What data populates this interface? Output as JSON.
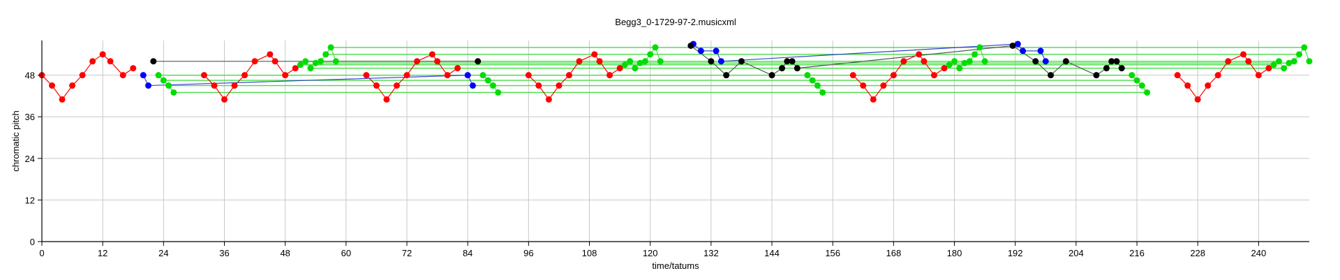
{
  "chart_data": {
    "type": "scatter",
    "title": "Begg3_0-1729-97-2.musicxml",
    "xlabel": "time/tatums",
    "ylabel": "chromatic pitch",
    "xlim": [
      0,
      250
    ],
    "ylim": [
      0,
      58
    ],
    "xticks": [
      0,
      12,
      24,
      36,
      48,
      60,
      72,
      84,
      96,
      108,
      120,
      132,
      144,
      156,
      168,
      180,
      192,
      204,
      216,
      228,
      240
    ],
    "yticks": [
      0,
      12,
      24,
      36,
      48
    ],
    "grid": true,
    "colors": {
      "red": "#ff0000",
      "blue": "#0000ff",
      "green": "#00dd00",
      "black": "#000000",
      "grid": "#c8c8c8",
      "gray_line": "#555555",
      "green_line": "#44dd44",
      "blue_line": "#3344cc"
    },
    "series": [
      {
        "color": "red",
        "segments": [
          [
            [
              0,
              48
            ],
            [
              2,
              45
            ],
            [
              4,
              41
            ],
            [
              6,
              45
            ],
            [
              8,
              48
            ],
            [
              10,
              52
            ],
            [
              12,
              54
            ],
            [
              13.5,
              52
            ],
            [
              16,
              48
            ],
            [
              18,
              50
            ]
          ],
          [
            [
              32,
              48
            ],
            [
              34,
              45
            ],
            [
              36,
              41
            ],
            [
              38,
              45
            ],
            [
              40,
              48
            ],
            [
              42,
              52
            ],
            [
              45,
              54
            ],
            [
              46,
              52
            ],
            [
              48,
              48
            ],
            [
              50,
              50
            ]
          ],
          [
            [
              64,
              48
            ],
            [
              66,
              45
            ],
            [
              68,
              41
            ],
            [
              70,
              45
            ],
            [
              72,
              48
            ],
            [
              74,
              52
            ],
            [
              77,
              54
            ],
            [
              78,
              52
            ],
            [
              80,
              48
            ],
            [
              82,
              50
            ]
          ],
          [
            [
              96,
              48
            ],
            [
              98,
              45
            ],
            [
              100,
              41
            ],
            [
              102,
              45
            ],
            [
              104,
              48
            ],
            [
              106,
              52
            ],
            [
              109,
              54
            ],
            [
              110,
              52
            ],
            [
              112,
              48
            ],
            [
              114,
              50
            ]
          ],
          [
            [
              160,
              48
            ],
            [
              162,
              45
            ],
            [
              164,
              41
            ],
            [
              166,
              45
            ],
            [
              168,
              48
            ],
            [
              170,
              52
            ],
            [
              173,
              54
            ],
            [
              174,
              52
            ],
            [
              176,
              48
            ],
            [
              178,
              50
            ]
          ],
          [
            [
              224,
              48
            ],
            [
              226,
              45
            ],
            [
              228,
              41
            ],
            [
              230,
              45
            ],
            [
              232,
              48
            ],
            [
              234,
              52
            ],
            [
              237,
              54
            ],
            [
              238,
              52
            ],
            [
              240,
              48
            ],
            [
              242,
              50
            ]
          ]
        ]
      },
      {
        "color": "blue",
        "segments": [
          [
            [
              20,
              48
            ],
            [
              21,
              45
            ],
            [
              84,
              48
            ],
            [
              85,
              45
            ]
          ],
          [
            [
              128.5,
              57
            ],
            [
              130,
              55
            ],
            [
              133,
              55
            ],
            [
              134,
              52
            ],
            [
              192.5,
              57
            ],
            [
              193.5,
              55
            ],
            [
              197,
              55
            ],
            [
              198,
              52
            ]
          ]
        ]
      },
      {
        "color": "green",
        "segments": [
          [
            [
              23,
              48
            ],
            [
              24,
              46.5
            ],
            [
              25,
              45
            ],
            [
              26,
              43
            ]
          ],
          [
            [
              51,
              51
            ],
            [
              52,
              52
            ],
            [
              53,
              50
            ],
            [
              54,
              51.5
            ],
            [
              55,
              52
            ],
            [
              56,
              54
            ],
            [
              57,
              56
            ],
            [
              58,
              52
            ]
          ],
          [
            [
              87,
              48
            ],
            [
              88,
              46.5
            ],
            [
              89,
              45
            ],
            [
              90,
              43
            ]
          ],
          [
            [
              115,
              51
            ],
            [
              116,
              52
            ],
            [
              117,
              50
            ],
            [
              118,
              51.5
            ],
            [
              119,
              52
            ],
            [
              120,
              54
            ],
            [
              121,
              56
            ],
            [
              122,
              52
            ]
          ],
          [
            [
              151,
              48
            ],
            [
              152,
              46.5
            ],
            [
              153,
              45
            ],
            [
              154,
              43
            ]
          ],
          [
            [
              179,
              51
            ],
            [
              180,
              52
            ],
            [
              181,
              50
            ],
            [
              182,
              51.5
            ],
            [
              183,
              52
            ],
            [
              184,
              54
            ],
            [
              185,
              56
            ],
            [
              186,
              52
            ]
          ],
          [
            [
              215,
              48
            ],
            [
              216,
              46.5
            ],
            [
              217,
              45
            ],
            [
              218,
              43
            ]
          ],
          [
            [
              243,
              51
            ],
            [
              244,
              52
            ],
            [
              245,
              50
            ],
            [
              246,
              51.5
            ],
            [
              247,
              52
            ],
            [
              248,
              54
            ],
            [
              249,
              56
            ],
            [
              250,
              52
            ]
          ]
        ]
      },
      {
        "color": "black",
        "segments": [
          [
            [
              22,
              52
            ],
            [
              86,
              52
            ]
          ],
          [
            [
              128,
              56.5
            ],
            [
              132,
              52
            ],
            [
              135,
              48
            ],
            [
              138,
              52
            ],
            [
              144,
              48
            ],
            [
              146,
              50
            ],
            [
              147,
              52
            ],
            [
              148,
              52
            ],
            [
              149,
              50
            ],
            [
              191.5,
              56.5
            ],
            [
              196,
              52
            ],
            [
              199,
              48
            ],
            [
              202,
              52
            ],
            [
              208,
              48
            ],
            [
              210,
              50
            ],
            [
              211,
              52
            ],
            [
              212,
              52
            ],
            [
              213,
              50
            ]
          ]
        ]
      }
    ],
    "green_hlines": [
      {
        "x": [
          23,
          215
        ],
        "y": 48
      },
      {
        "x": [
          24,
          216
        ],
        "y": 46.5
      },
      {
        "x": [
          25,
          217
        ],
        "y": 45
      },
      {
        "x": [
          26,
          218
        ],
        "y": 43
      },
      {
        "x": [
          51,
          243
        ],
        "y": 51
      },
      {
        "x": [
          52,
          244
        ],
        "y": 52
      },
      {
        "x": [
          53,
          245
        ],
        "y": 50
      },
      {
        "x": [
          54,
          246
        ],
        "y": 51.5
      },
      {
        "x": [
          56,
          248
        ],
        "y": 54
      },
      {
        "x": [
          57,
          249
        ],
        "y": 56
      }
    ]
  }
}
